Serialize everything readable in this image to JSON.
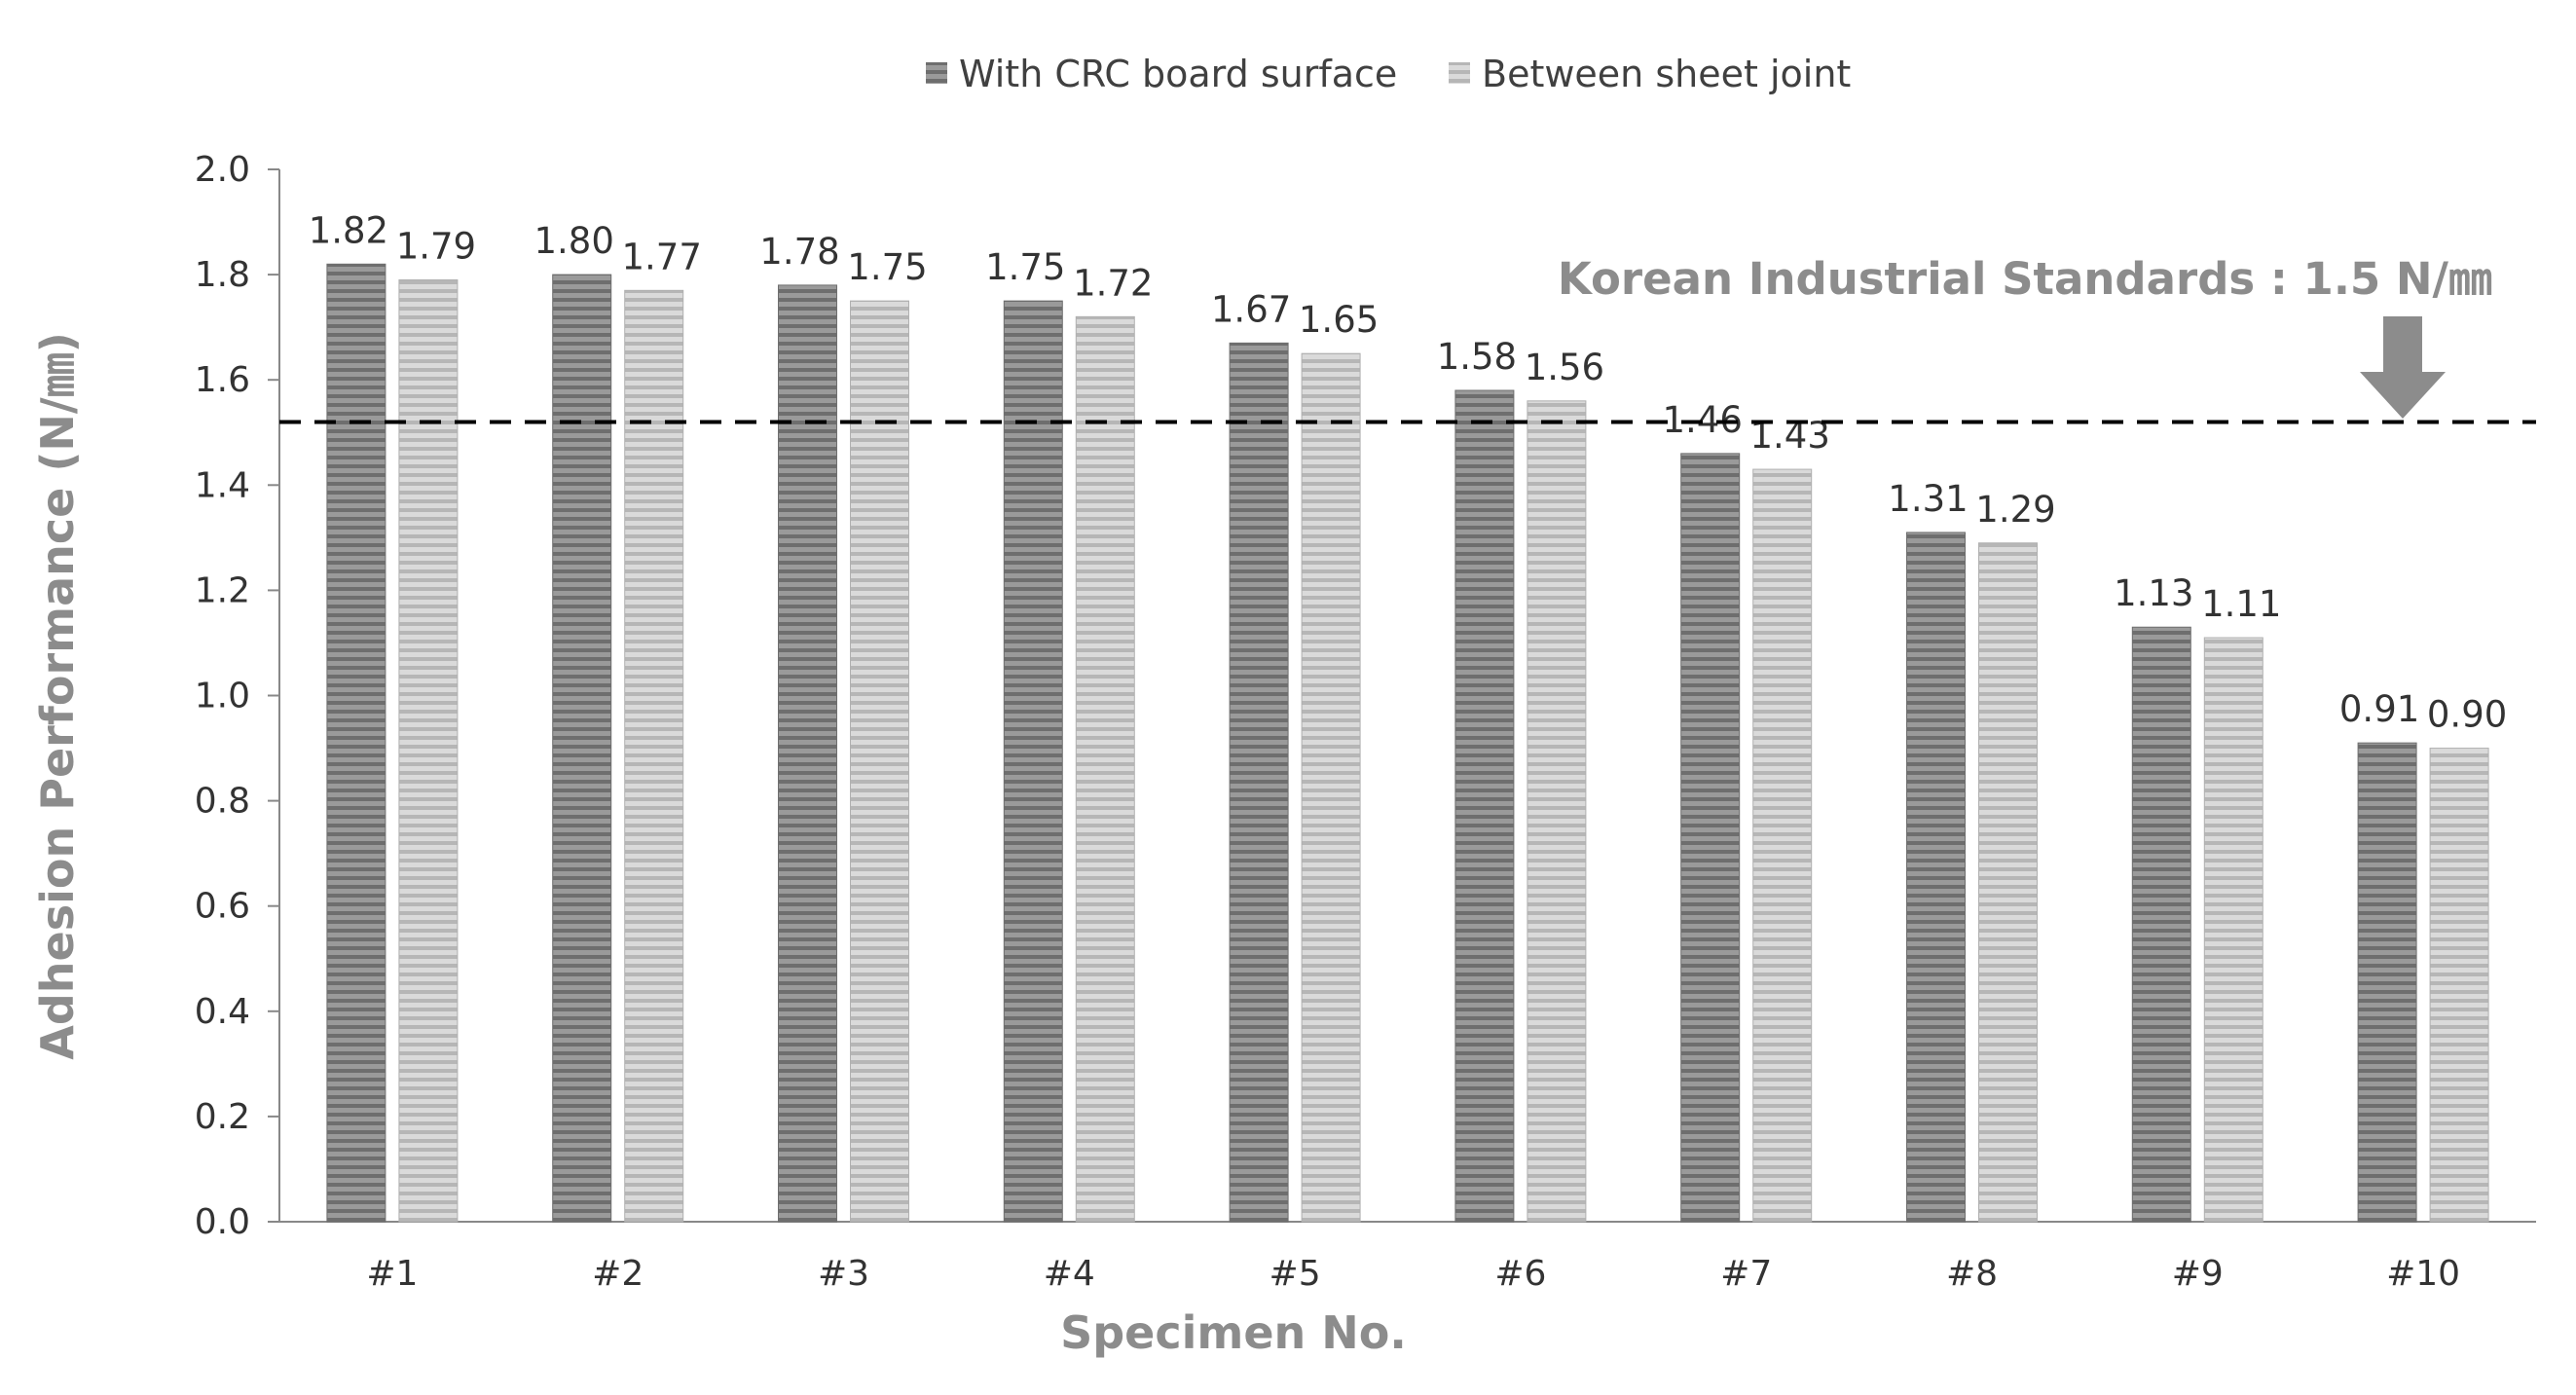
{
  "chart_data": {
    "type": "bar",
    "categories": [
      "#1",
      "#2",
      "#3",
      "#4",
      "#5",
      "#6",
      "#7",
      "#8",
      "#9",
      "#10"
    ],
    "series": [
      {
        "name": "With CRC board surface",
        "values": [
          1.82,
          1.8,
          1.78,
          1.75,
          1.67,
          1.58,
          1.46,
          1.31,
          1.13,
          0.91
        ],
        "labels": [
          "1.82",
          "1.80",
          "1.78",
          "1.75",
          "1.67",
          "1.58",
          "1.46",
          "1.31",
          "1.13",
          "0.91"
        ],
        "color": "#7f7f7f"
      },
      {
        "name": "Between sheet joint",
        "values": [
          1.79,
          1.77,
          1.75,
          1.72,
          1.65,
          1.56,
          1.43,
          1.29,
          1.11,
          0.9
        ],
        "labels": [
          "1.79",
          "1.77",
          "1.75",
          "1.72",
          "1.65",
          "1.56",
          "1.43",
          "1.29",
          "1.11",
          "0.90"
        ],
        "color": "#c4c4c4"
      }
    ],
    "xlabel": "Specimen No.",
    "ylabel": "Adhesion Performance (N/㎜)",
    "ylim": [
      0,
      2.0
    ],
    "yticks": [
      "0.0",
      "0.2",
      "0.4",
      "0.6",
      "0.8",
      "1.0",
      "1.2",
      "1.4",
      "1.6",
      "1.8",
      "2.0"
    ],
    "reference_line": {
      "value": 1.52,
      "label": "Korean Industrial Standards : 1.5 N/㎜",
      "style": "dashed",
      "color": "#000000"
    },
    "grid": false,
    "legend_position": "top-center"
  }
}
